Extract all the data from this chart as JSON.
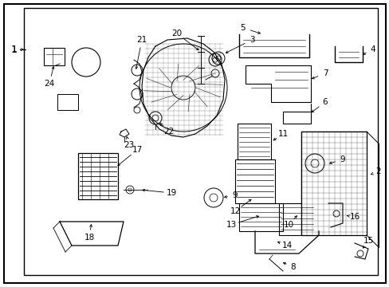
{
  "bg_color": "#ffffff",
  "border_color": "#000000",
  "fig_width": 4.89,
  "fig_height": 3.6,
  "dpi": 100
}
